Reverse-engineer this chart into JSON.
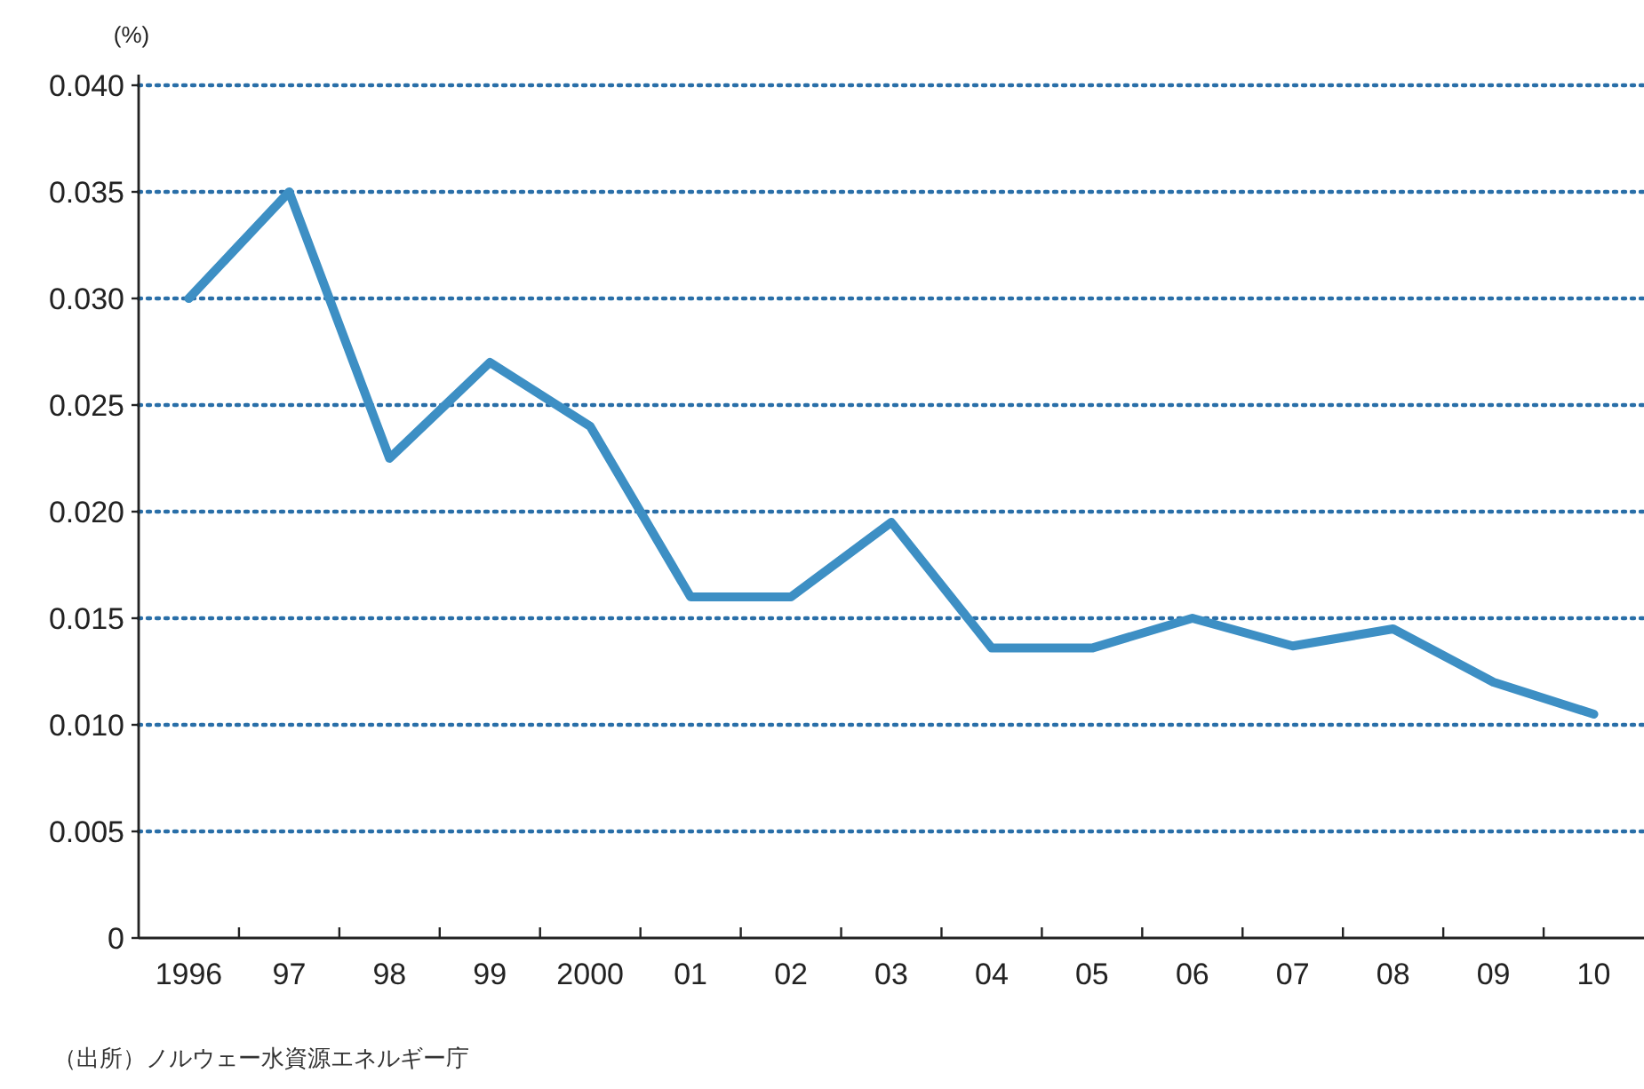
{
  "chart_data": {
    "type": "line",
    "ylabel": "(%)",
    "categories": [
      "1996",
      "97",
      "98",
      "99",
      "2000",
      "01",
      "02",
      "03",
      "04",
      "05",
      "06",
      "07",
      "08",
      "09",
      "10"
    ],
    "series": [
      {
        "color": "#3d8fc4",
        "values": [
          0.03,
          0.035,
          0.0225,
          0.027,
          0.024,
          0.016,
          0.016,
          0.0195,
          0.0136,
          0.0136,
          0.015,
          0.0137,
          0.0145,
          0.012,
          0.0105
        ]
      }
    ],
    "ylim": [
      0,
      0.04
    ],
    "yticks": [
      0,
      {
        "value": 0.005,
        "label": "0.005"
      },
      {
        "value": 0.01,
        "label": "0.010"
      },
      {
        "value": 0.015,
        "label": "0.015"
      },
      {
        "value": 0.02,
        "label": "0.020"
      },
      {
        "value": 0.025,
        "label": "0.025"
      },
      {
        "value": 0.03,
        "label": "0.030"
      },
      {
        "value": 0.035,
        "label": "0.035"
      },
      {
        "value": 0.04,
        "label": "0.040"
      }
    ],
    "grid": "y",
    "marker": "none",
    "line_style": "solid",
    "annotations": [
      "（出所）ノルウェー水資源エネルギー庁"
    ]
  }
}
